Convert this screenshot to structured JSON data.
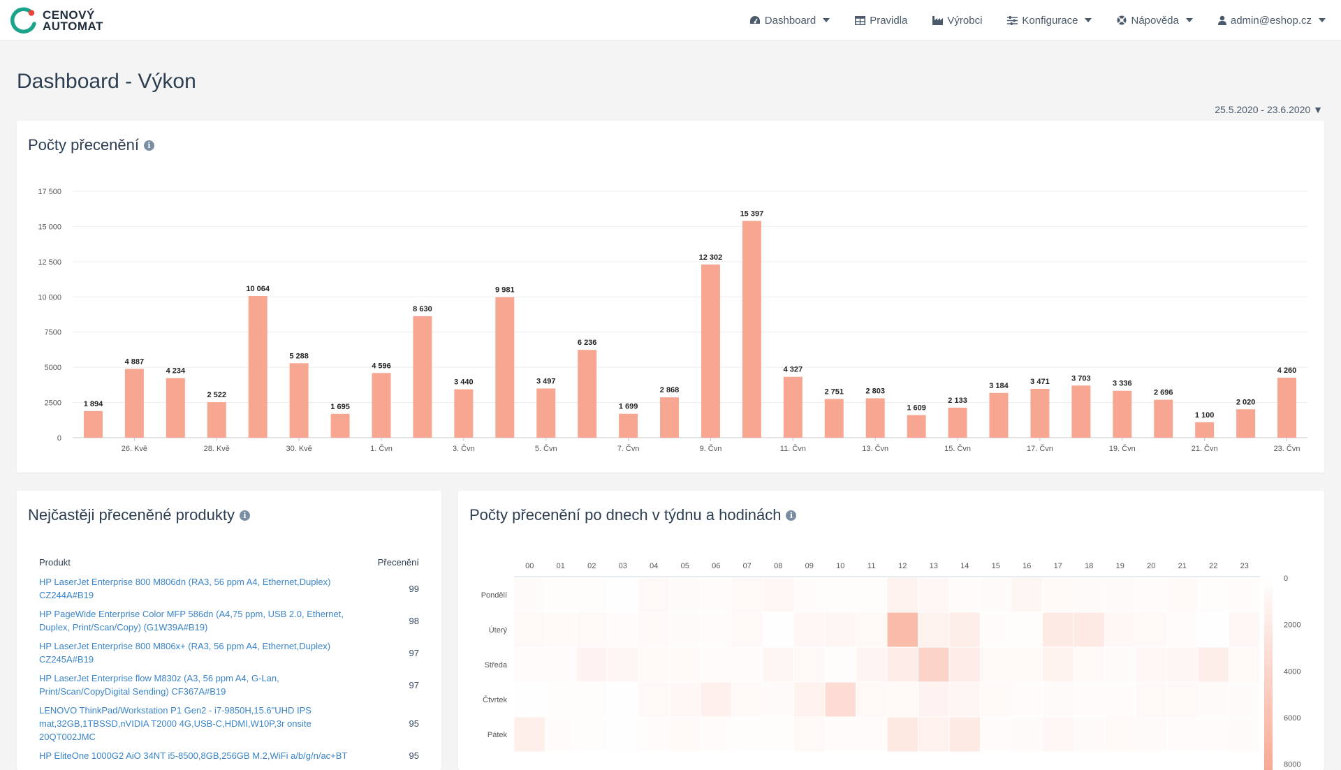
{
  "app": {
    "logo_line1": "CENOVÝ",
    "logo_line2": "AUTOMAT",
    "accent": "#f7a791",
    "brand_green": "#1aa58a",
    "brand_red": "#e8433a"
  },
  "nav": {
    "dashboard": "Dashboard",
    "rules": "Pravidla",
    "manufacturers": "Výrobci",
    "config": "Konfigurace",
    "help": "Nápověda",
    "user": "admin@eshop.cz"
  },
  "page": {
    "title": "Dashboard - Výkon",
    "date_range": "25.5.2020 - 23.6.2020 ▼"
  },
  "bar_card": {
    "title": "Počty přecenění"
  },
  "chart_data": [
    {
      "type": "bar",
      "title": "Počty přecenění",
      "x_tick_labels": [
        "26. Kvě",
        "28. Kvě",
        "30. Kvě",
        "1. Čvn",
        "3. Čvn",
        "5. Čvn",
        "7. Čvn",
        "9. Čvn",
        "11. Čvn",
        "13. Čvn",
        "15. Čvn",
        "17. Čvn",
        "19. Čvn",
        "21. Čvn",
        "23. Čvn"
      ],
      "categories": [
        "25.5.",
        "26.5.",
        "27.5.",
        "28.5.",
        "29.5.",
        "30.5.",
        "31.5.",
        "1.6.",
        "2.6.",
        "3.6.",
        "4.6.",
        "5.6.",
        "6.6.",
        "7.6.",
        "8.6.",
        "9.6.",
        "10.6.",
        "11.6.",
        "12.6.",
        "13.6.",
        "14.6.",
        "15.6.",
        "16.6.",
        "17.6.",
        "18.6.",
        "19.6.",
        "20.6.",
        "21.6.",
        "22.6.",
        "23.6."
      ],
      "values": [
        1894,
        4887,
        4234,
        2522,
        10064,
        5288,
        1695,
        4596,
        8630,
        3440,
        9981,
        3497,
        6236,
        1699,
        2868,
        12302,
        15397,
        4327,
        2751,
        2803,
        1609,
        2133,
        3184,
        3471,
        3703,
        3336,
        2696,
        1100,
        2020,
        4260
      ],
      "value_labels": [
        "1 894",
        "4 887",
        "4 234",
        "2 522",
        "10 064",
        "5 288",
        "1 695",
        "4 596",
        "8 630",
        "3 440",
        "9 981",
        "3 497",
        "6 236",
        "1 699",
        "2 868",
        "12 302",
        "15 397",
        "4 327",
        "2 751",
        "2 803",
        "1 609",
        "2 133",
        "3 184",
        "3 471",
        "3 703",
        "3 336",
        "2 696",
        "1 100",
        "2 020",
        "4 260"
      ],
      "y_ticks": [
        0,
        2500,
        5000,
        7500,
        10000,
        12500,
        15000,
        17500
      ],
      "y_tick_labels": [
        "0",
        "2500",
        "5000",
        "7500",
        "10 000",
        "12 500",
        "15 000",
        "17 500"
      ],
      "ylim": [
        0,
        17500
      ],
      "grid": true,
      "color": "#f7a791"
    },
    {
      "type": "heatmap",
      "title": "Počty přecenění po dnech v týdnu a hodinách",
      "columns": [
        "00",
        "01",
        "02",
        "03",
        "04",
        "05",
        "06",
        "07",
        "08",
        "09",
        "10",
        "11",
        "12",
        "13",
        "14",
        "15",
        "16",
        "17",
        "18",
        "19",
        "20",
        "21",
        "22",
        "23"
      ],
      "rows": [
        "Pondělí",
        "Úterý",
        "Středa",
        "Čtvrtek",
        "Pátek"
      ],
      "values": [
        [
          400,
          200,
          200,
          100,
          700,
          400,
          300,
          700,
          800,
          300,
          200,
          200,
          1200,
          800,
          300,
          400,
          900,
          500,
          400,
          400,
          300,
          500,
          200,
          300
        ],
        [
          600,
          500,
          700,
          300,
          500,
          400,
          300,
          700,
          100,
          800,
          900,
          700,
          6400,
          1200,
          1600,
          300,
          200,
          2000,
          2000,
          800,
          700,
          300,
          100,
          800
        ],
        [
          300,
          300,
          1100,
          900,
          500,
          500,
          300,
          300,
          900,
          600,
          200,
          1000,
          1800,
          4200,
          1800,
          600,
          700,
          1200,
          600,
          400,
          800,
          900,
          1600,
          700
        ],
        [
          100,
          200,
          200,
          100,
          700,
          800,
          1400,
          500,
          400,
          1300,
          3300,
          600,
          600,
          1100,
          900,
          500,
          300,
          400,
          300,
          300,
          600,
          600,
          400,
          400
        ],
        [
          1500,
          300,
          200,
          100,
          300,
          500,
          300,
          200,
          200,
          700,
          300,
          300,
          2200,
          1300,
          2000,
          300,
          400,
          800,
          400,
          500,
          400,
          300,
          300,
          400
        ]
      ],
      "scale_ticks": [
        0,
        2000,
        4000,
        6000,
        8000
      ],
      "scale_labels": [
        "0",
        "2000",
        "4000",
        "6000",
        "8000"
      ],
      "scale_max": 8400,
      "color_low": "#ffffff",
      "color_high": "#f7a791"
    }
  ],
  "products": {
    "title": "Nejčastěji přeceněné produkty",
    "col_product": "Produkt",
    "col_count": "Přecenění",
    "rows": [
      {
        "name": "HP LaserJet Enterprise 800 M806dn (RA3, 56 ppm A4, Ethernet,Duplex) CZ244A#B19",
        "count": "99"
      },
      {
        "name": "HP PageWide Enterprise Color MFP 586dn (A4,75 ppm, USB 2.0, Ethernet, Duplex, Print/Scan/Copy) (G1W39A#B19)",
        "count": "98"
      },
      {
        "name": "HP LaserJet Enterprise 800 M806x+ (RA3, 56 ppm A4, Ethernet,Duplex) CZ245A#B19",
        "count": "97"
      },
      {
        "name": "HP LaserJet Enterprise flow M830z (A3, 56 ppm A4, G-Lan, Print/Scan/CopyDigital Sending) CF367A#B19",
        "count": "97"
      },
      {
        "name": "LENOVO ThinkPad/Workstation P1 Gen2 - i7-9850H,15.6\"UHD IPS mat,32GB,1TBSSD,nVIDIA T2000 4G,USB-C,HDMI,W10P,3r onsite 20QT002JMC",
        "count": "95"
      },
      {
        "name": "HP EliteOne 1000G2 AiO 34NT i5-8500,8GB,256GB M.2,WiFi a/b/g/n/ac+BT",
        "count": "95"
      }
    ]
  },
  "heatmap_card": {
    "title": "Počty přecenění po dnech v týdnu a hodinách"
  }
}
